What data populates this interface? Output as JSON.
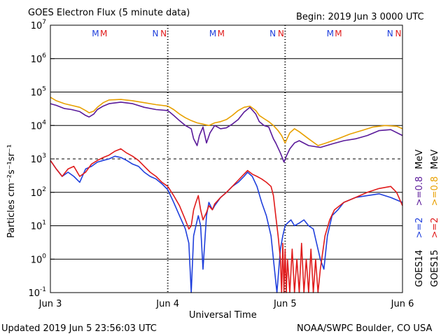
{
  "chart_data": {
    "type": "line",
    "title": "GOES Electron Flux (5 minute data)",
    "begin_label": "Begin: 2019 Jun 3 0000 UTC",
    "xlabel": "Universal Time",
    "ylabel": "Particles cm⁻²s⁻¹sr⁻¹",
    "yscale": "log",
    "ylim": [
      0.1,
      10000000
    ],
    "xlim": [
      0,
      3
    ],
    "x_unit": "days since 2019 Jun 3 0000 UTC",
    "x_ticks": [
      {
        "x": 0,
        "label": "Jun 3"
      },
      {
        "x": 1,
        "label": "Jun 4"
      },
      {
        "x": 2,
        "label": "Jun 5"
      },
      {
        "x": 3,
        "label": "Jun 6"
      }
    ],
    "y_ticks": [
      {
        "exp": "-1",
        "value": 0.1
      },
      {
        "exp": "0",
        "value": 1
      },
      {
        "exp": "1",
        "value": 10
      },
      {
        "exp": "2",
        "value": 100
      },
      {
        "exp": "3",
        "value": 1000
      },
      {
        "exp": "4",
        "value": 10000
      },
      {
        "exp": "5",
        "value": 100000
      },
      {
        "exp": "6",
        "value": 1000000
      },
      {
        "exp": "7",
        "value": 10000000
      }
    ],
    "dashed_threshold": 1000,
    "markers": [
      {
        "x": 0.42,
        "text": "M",
        "color": "#1f3fdc"
      },
      {
        "x": 0.49,
        "text": "M",
        "color": "#e01b1b"
      },
      {
        "x": 0.93,
        "text": "N",
        "color": "#1f3fdc"
      },
      {
        "x": 1.0,
        "text": "N",
        "color": "#e01b1b"
      },
      {
        "x": 1.42,
        "text": "M",
        "color": "#1f3fdc"
      },
      {
        "x": 1.49,
        "text": "M",
        "color": "#e01b1b"
      },
      {
        "x": 1.93,
        "text": "N",
        "color": "#1f3fdc"
      },
      {
        "x": 2.0,
        "text": "N",
        "color": "#e01b1b"
      },
      {
        "x": 2.42,
        "text": "M",
        "color": "#1f3fdc"
      },
      {
        "x": 2.49,
        "text": "M",
        "color": "#e01b1b"
      },
      {
        "x": 2.93,
        "text": "N",
        "color": "#1f3fdc"
      },
      {
        "x": 3.0,
        "text": "N",
        "color": "#e01b1b"
      }
    ],
    "legend": {
      "goes14": {
        "sat": "GOES14",
        "low": ">=2",
        "high": ">=0.8",
        "unit": "MeV"
      },
      "goes15": {
        "sat": "GOES15",
        "low": ">=2",
        "high": ">=0.8",
        "unit": "MeV"
      }
    },
    "series": [
      {
        "name": "GOES14 >=0.8 MeV",
        "color": "#5a1a9a",
        "x": [
          0,
          0.05,
          0.12,
          0.18,
          0.25,
          0.3,
          0.33,
          0.37,
          0.4,
          0.45,
          0.5,
          0.6,
          0.7,
          0.8,
          0.9,
          1.0,
          1.05,
          1.1,
          1.15,
          1.2,
          1.22,
          1.25,
          1.27,
          1.3,
          1.33,
          1.36,
          1.4,
          1.45,
          1.5,
          1.55,
          1.6,
          1.65,
          1.7,
          1.75,
          1.78,
          1.82,
          1.86,
          1.88,
          1.9,
          1.92,
          1.96,
          1.99,
          2.01,
          2.04,
          2.08,
          2.12,
          2.2,
          2.3,
          2.4,
          2.5,
          2.6,
          2.7,
          2.8,
          2.9,
          3.0
        ],
        "y": [
          45000,
          40000,
          32000,
          30000,
          26000,
          20000,
          18000,
          22000,
          30000,
          38000,
          45000,
          50000,
          45000,
          35000,
          30000,
          28000,
          20000,
          14000,
          10000,
          8000,
          4000,
          2500,
          5000,
          9000,
          3000,
          6000,
          10000,
          8000,
          8500,
          11000,
          15000,
          25000,
          35000,
          22000,
          13000,
          10000,
          9000,
          6000,
          4000,
          3000,
          1500,
          800,
          1200,
          2000,
          3000,
          3500,
          2500,
          2200,
          2800,
          3500,
          4000,
          5000,
          7000,
          7500,
          5000
        ]
      },
      {
        "name": "GOES15 >=0.8 MeV",
        "color": "#e8a000",
        "x": [
          0,
          0.05,
          0.12,
          0.18,
          0.25,
          0.3,
          0.33,
          0.37,
          0.4,
          0.45,
          0.5,
          0.6,
          0.7,
          0.8,
          0.9,
          1.0,
          1.05,
          1.1,
          1.15,
          1.2,
          1.25,
          1.3,
          1.35,
          1.4,
          1.45,
          1.5,
          1.55,
          1.6,
          1.65,
          1.7,
          1.75,
          1.78,
          1.82,
          1.86,
          1.9,
          1.94,
          1.97,
          2.0,
          2.04,
          2.08,
          2.12,
          2.2,
          2.28,
          2.35,
          2.45,
          2.55,
          2.65,
          2.75,
          2.85,
          2.95,
          3.0
        ],
        "y": [
          70000,
          55000,
          45000,
          40000,
          35000,
          28000,
          24000,
          27000,
          35000,
          48000,
          58000,
          60000,
          55000,
          48000,
          42000,
          38000,
          30000,
          22000,
          17000,
          14000,
          12000,
          11000,
          10000,
          12000,
          13000,
          15000,
          20000,
          28000,
          35000,
          38000,
          28000,
          20000,
          16000,
          13000,
          10000,
          7000,
          5000,
          3000,
          6000,
          8000,
          6500,
          4000,
          2500,
          3000,
          4000,
          5500,
          7000,
          9000,
          10000,
          9500,
          8000
        ]
      },
      {
        "name": "GOES14 >=2 MeV",
        "color": "#1f3fdc",
        "x": [
          0,
          0.05,
          0.1,
          0.15,
          0.2,
          0.25,
          0.3,
          0.35,
          0.4,
          0.45,
          0.5,
          0.55,
          0.6,
          0.65,
          0.7,
          0.75,
          0.8,
          0.85,
          0.9,
          0.95,
          1.0,
          1.05,
          1.1,
          1.15,
          1.18,
          1.2,
          1.22,
          1.24,
          1.26,
          1.28,
          1.3,
          1.33,
          1.35,
          1.38,
          1.4,
          1.45,
          1.5,
          1.55,
          1.6,
          1.65,
          1.68,
          1.72,
          1.76,
          1.8,
          1.84,
          1.88,
          1.9,
          1.93,
          1.96,
          1.98,
          2.0,
          2.02,
          2.05,
          2.08,
          2.12,
          2.16,
          2.2,
          2.24,
          2.26,
          2.3,
          2.33,
          2.36,
          2.4,
          2.45,
          2.5,
          2.6,
          2.7,
          2.8,
          2.9,
          3.0
        ],
        "y": [
          900,
          500,
          300,
          400,
          300,
          200,
          500,
          600,
          800,
          900,
          1000,
          1200,
          1100,
          900,
          700,
          600,
          400,
          300,
          250,
          180,
          120,
          50,
          20,
          8,
          3,
          0.1,
          5,
          10,
          20,
          10,
          0.5,
          20,
          50,
          30,
          40,
          70,
          100,
          150,
          200,
          300,
          400,
          300,
          150,
          50,
          20,
          5,
          1,
          0.1,
          2,
          5,
          10,
          12,
          15,
          10,
          12,
          15,
          10,
          8,
          4,
          1,
          0.5,
          5,
          20,
          30,
          50,
          70,
          80,
          90,
          70,
          50
        ]
      },
      {
        "name": "GOES15 >=2 MeV",
        "color": "#e01b1b",
        "x": [
          0,
          0.05,
          0.1,
          0.15,
          0.2,
          0.25,
          0.3,
          0.35,
          0.4,
          0.45,
          0.5,
          0.55,
          0.6,
          0.65,
          0.7,
          0.75,
          0.8,
          0.85,
          0.9,
          0.95,
          1.0,
          1.05,
          1.1,
          1.15,
          1.18,
          1.2,
          1.22,
          1.24,
          1.26,
          1.28,
          1.3,
          1.33,
          1.35,
          1.38,
          1.4,
          1.45,
          1.5,
          1.55,
          1.6,
          1.65,
          1.68,
          1.72,
          1.76,
          1.8,
          1.84,
          1.88,
          1.9,
          1.92,
          1.94,
          1.96,
          1.97,
          1.98,
          1.99,
          2.0,
          2.01,
          2.02,
          2.04,
          2.06,
          2.08,
          2.1,
          2.12,
          2.14,
          2.16,
          2.18,
          2.2,
          2.22,
          2.24,
          2.26,
          2.28,
          2.3,
          2.34,
          2.38,
          2.42,
          2.5,
          2.6,
          2.7,
          2.8,
          2.9,
          2.95,
          3.0
        ],
        "y": [
          900,
          500,
          300,
          500,
          600,
          300,
          400,
          700,
          900,
          1100,
          1300,
          1700,
          2000,
          1500,
          1200,
          900,
          600,
          400,
          300,
          200,
          150,
          80,
          40,
          15,
          8,
          10,
          30,
          50,
          80,
          30,
          15,
          25,
          40,
          30,
          45,
          70,
          100,
          150,
          230,
          350,
          450,
          350,
          300,
          250,
          200,
          150,
          80,
          20,
          5,
          1,
          0.1,
          3,
          0.1,
          2,
          0.1,
          1,
          0.1,
          2,
          0.1,
          1,
          0.1,
          3,
          0.1,
          1,
          0.1,
          2,
          0.1,
          1,
          0.1,
          0.5,
          5,
          15,
          30,
          50,
          70,
          100,
          130,
          150,
          100,
          40
        ]
      }
    ]
  },
  "footer": {
    "updated": "Updated 2019 Jun  5 23:56:03 UTC",
    "source": "NOAA/SWPC Boulder, CO USA"
  }
}
